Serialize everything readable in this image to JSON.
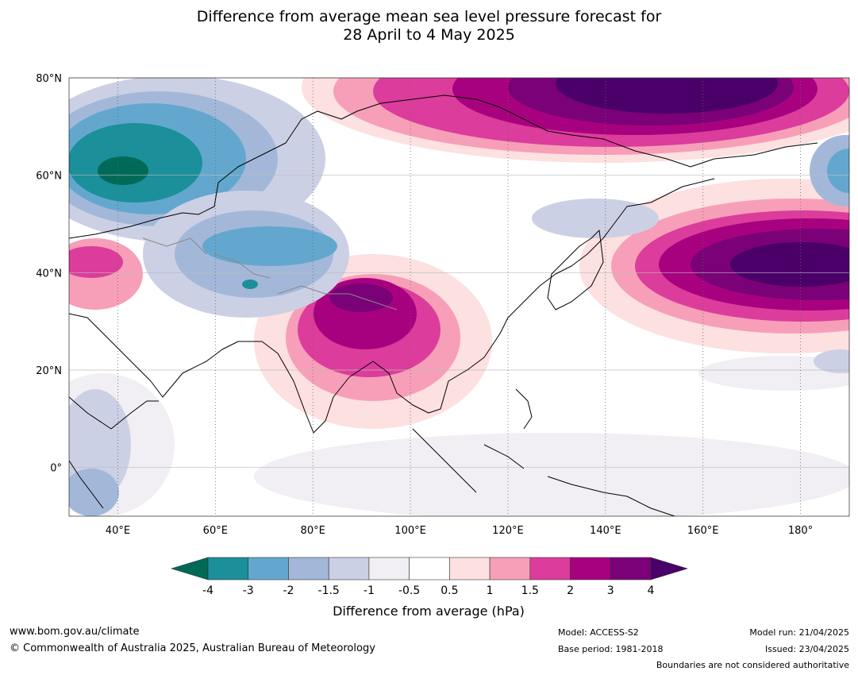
{
  "title": {
    "line1": "Difference from average mean sea level pressure forecast for",
    "line2": "28 April to 4 May 2025"
  },
  "map": {
    "lat_labels": [
      "80°N",
      "60°N",
      "40°N",
      "20°N",
      "0°"
    ],
    "lon_labels": [
      "40°E",
      "60°E",
      "80°E",
      "100°E",
      "120°E",
      "140°E",
      "160°E",
      "180°"
    ],
    "extent": {
      "lon_min": 30,
      "lon_max": 190,
      "lat_min": -10,
      "lat_max": 80
    }
  },
  "colorbar": {
    "tick_labels": [
      "-4",
      "-3",
      "-2",
      "-1.5",
      "-1",
      "-0.5",
      "0.5",
      "1",
      "1.5",
      "2",
      "3",
      "4"
    ],
    "colors": [
      "#006a58",
      "#1b8f9a",
      "#63a7cf",
      "#a3b8d9",
      "#ccd0e5",
      "#f1eef4",
      "#ffffff",
      "#fde0e0",
      "#f79fb8",
      "#dc3c9b",
      "#a8017f",
      "#7a0177",
      "#4a0068"
    ],
    "label": "Difference from average (hPa)"
  },
  "footer": {
    "url": "www.bom.gov.au/climate",
    "copyright": "© Commonwealth of Australia 2025, Australian Bureau of Meteorology",
    "model": "Model: ACCESS-S2",
    "base_period": "Base period: 1981-2018",
    "model_run": "Model run: 21/04/2025",
    "issued": "Issued: 23/04/2025",
    "disclaimer": "Boundaries are not considered authoritative"
  }
}
